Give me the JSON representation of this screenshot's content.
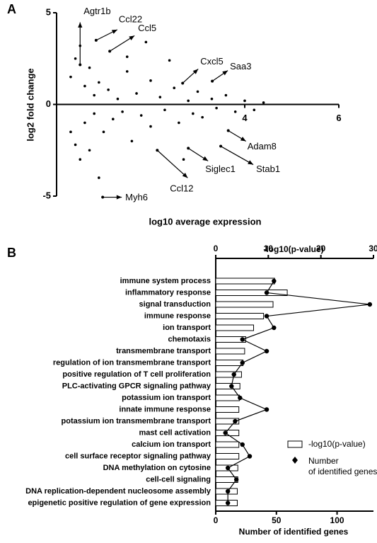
{
  "chart_data": [
    {
      "type": "scatter",
      "panel": "A",
      "xlabel": "log10 average expression",
      "ylabel": "log2 fold change",
      "xlim": [
        0,
        6
      ],
      "ylim": [
        -5,
        5
      ],
      "xticks": [
        4,
        6
      ],
      "yticks": [
        -5,
        0,
        5
      ],
      "color": "#000000",
      "x": [
        0.3,
        0.3,
        0.4,
        0.4,
        0.5,
        0.5,
        0.6,
        0.6,
        0.7,
        0.7,
        0.8,
        0.8,
        0.9,
        1.0,
        1.1,
        1.2,
        1.3,
        1.4,
        1.5,
        1.6,
        1.7,
        1.8,
        2.0,
        2.0,
        2.2,
        2.3,
        2.5,
        2.6,
        2.8,
        2.9,
        3.0,
        3.1,
        3.3,
        3.4,
        3.6,
        3.8,
        4.0,
        4.2,
        4.4,
        1.5,
        2.4,
        2.7,
        0.9,
        1.9
      ],
      "y": [
        1.5,
        -1.5,
        2.5,
        -2.2,
        3.2,
        -3.0,
        1.0,
        -1.0,
        2.0,
        -2.5,
        0.5,
        -0.5,
        1.2,
        -1.5,
        0.8,
        -0.8,
        0.3,
        -0.4,
        1.8,
        -2.0,
        0.6,
        -0.6,
        1.3,
        -1.2,
        0.4,
        -0.3,
        0.9,
        -1.0,
        0.2,
        -0.5,
        0.7,
        -0.7,
        0.3,
        -0.2,
        0.5,
        -0.4,
        0.2,
        -0.3,
        0.1,
        2.6,
        2.4,
        -3.0,
        -4.0,
        3.4
      ],
      "annotations": [
        {
          "text": "Agtr1b",
          "x": 0.5,
          "y": 2.16
        },
        {
          "text": "Ccl22",
          "x": 0.84,
          "y": 3.5
        },
        {
          "text": "Ccl5",
          "x": 1.13,
          "y": 2.9
        },
        {
          "text": "Cxcl5",
          "x": 2.68,
          "y": 1.16
        },
        {
          "text": "Saa3",
          "x": 3.31,
          "y": 1.27
        },
        {
          "text": "Adam8",
          "x": 3.65,
          "y": -1.43
        },
        {
          "text": "Stab1",
          "x": 3.49,
          "y": -2.28
        },
        {
          "text": "Siglec1",
          "x": 2.8,
          "y": -2.39
        },
        {
          "text": "Ccl12",
          "x": 2.14,
          "y": -2.5
        },
        {
          "text": "Myh6",
          "x": 0.98,
          "y": -5.06
        }
      ]
    },
    {
      "type": "bar",
      "panel": "B",
      "categories": [
        "immune system process",
        "inflammatory response",
        "signal transduction",
        "immune response",
        "ion transport",
        "chemotaxis",
        "transmembrane transport",
        "regulation of ion transmembrane transport",
        "positive regulation of T cell proliferation",
        "PLC-activating GPCR signaling pathway",
        "potassium ion transport",
        "innate immune response",
        "potassium ion transmembrane transport",
        "mast cell activation",
        "calcium ion transport",
        "cell surface receptor signaling pathway",
        "DNA methylation on cytosine",
        "cell-cell signaling",
        "DNA replication-dependent nucleosome assembly",
        "epigenetic positive regulation of gene expression"
      ],
      "series": [
        {
          "name": "-log10(p-value)",
          "axis": "x2",
          "color": "#ffffff",
          "values": [
            11.2,
            13.6,
            10.9,
            9.1,
            7.2,
            5.7,
            5.5,
            5.2,
            4.9,
            4.6,
            4.5,
            4.4,
            4.4,
            4.4,
            4.4,
            4.4,
            4.2,
            4.2,
            4.1,
            4.1
          ]
        },
        {
          "name": "Number of identified genes",
          "color": "#000000",
          "values": [
            48,
            42,
            127,
            42,
            48,
            22,
            42,
            22,
            15,
            13,
            20,
            42,
            16,
            8,
            22,
            28,
            10,
            17,
            10,
            10
          ]
        }
      ],
      "xlabel": "Number of identified genes",
      "x2label": "-log10(p-value)",
      "xlim": [
        0,
        130
      ],
      "xticks": [
        0,
        50,
        100
      ],
      "x2lim": [
        0,
        30
      ],
      "x2ticks": [
        0,
        10,
        20,
        30
      ]
    }
  ]
}
